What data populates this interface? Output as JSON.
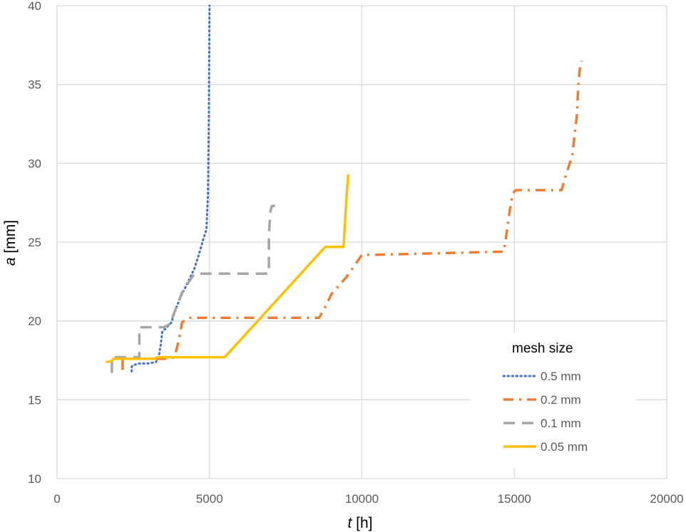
{
  "chart_data": {
    "type": "line",
    "title": "",
    "xlabel": {
      "var": "t",
      "unit": " [h]"
    },
    "ylabel": {
      "var": "a",
      "unit": " [mm]"
    },
    "xlim": [
      0,
      20000
    ],
    "ylim": [
      10,
      40
    ],
    "xticks": [
      0,
      5000,
      10000,
      15000,
      20000
    ],
    "yticks": [
      10,
      15,
      20,
      25,
      30,
      35,
      40
    ],
    "grid": true,
    "legend": {
      "title": "mesh size",
      "position": "bottom-right"
    },
    "series": [
      {
        "name": "0.5 mm",
        "color": "#4472c4",
        "style": "dotted",
        "x": [
          2450,
          2450,
          2500,
          2700,
          3000,
          3250,
          3350,
          3400,
          3450,
          3550,
          3750,
          3900,
          4100,
          4300,
          4500,
          4650,
          4800,
          4900,
          4950,
          4980,
          5000
        ],
        "y": [
          16.8,
          17.1,
          17.2,
          17.3,
          17.3,
          17.4,
          17.9,
          18.5,
          19.3,
          19.5,
          19.9,
          20.8,
          21.7,
          22.5,
          23.3,
          24.2,
          25.2,
          25.8,
          28.0,
          33.0,
          40.0
        ]
      },
      {
        "name": "0.2 mm",
        "color": "#ed7d31",
        "style": "dashdot",
        "x": [
          2150,
          2150,
          2200,
          3300,
          3700,
          3850,
          4000,
          4100,
          4300,
          8600,
          8800,
          9000,
          9500,
          9900,
          10000,
          10500,
          14650,
          14750,
          14850,
          14950,
          15050,
          16550,
          16700,
          16900,
          17050,
          17100,
          17150,
          17200
        ],
        "y": [
          16.9,
          17.7,
          17.6,
          17.6,
          17.6,
          17.7,
          18.8,
          19.9,
          20.2,
          20.2,
          20.9,
          21.7,
          22.8,
          23.9,
          24.2,
          24.2,
          24.4,
          25.6,
          27.0,
          28.1,
          28.3,
          28.3,
          29.3,
          30.5,
          33.0,
          35.0,
          36.0,
          36.5
        ]
      },
      {
        "name": "0.1 mm",
        "color": "#a5a5a5",
        "style": "dashed",
        "x": [
          1800,
          1800,
          1850,
          2600,
          2700,
          2700,
          3500,
          3700,
          3900,
          4100,
          4300,
          4500,
          6950,
          6950,
          7000,
          7050,
          7150
        ],
        "y": [
          16.7,
          17.7,
          17.7,
          17.7,
          17.7,
          19.6,
          19.6,
          19.8,
          20.8,
          21.8,
          22.4,
          23.0,
          23.0,
          25.5,
          27.0,
          27.3,
          27.3
        ]
      },
      {
        "name": "0.05 mm",
        "color": "#ffc000",
        "style": "solid",
        "x": [
          1600,
          1800,
          1850,
          3200,
          3300,
          3400,
          5500,
          8800,
          9400,
          9500,
          9550
        ],
        "y": [
          17.4,
          17.45,
          17.6,
          17.6,
          17.7,
          17.7,
          17.7,
          24.7,
          24.7,
          28.0,
          29.3
        ]
      }
    ]
  }
}
